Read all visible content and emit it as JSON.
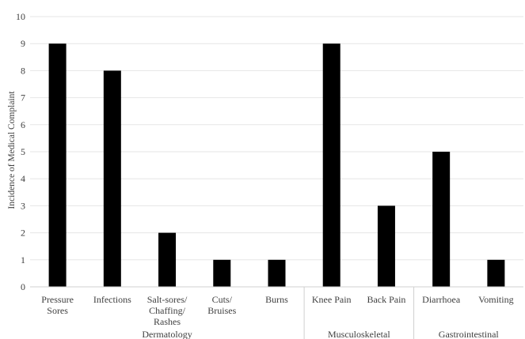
{
  "chart_data": {
    "type": "bar",
    "title": "",
    "xlabel": "",
    "ylabel": "Incidence of Medical Complaint",
    "ylim": [
      0,
      10
    ],
    "yticks": [
      "0",
      "1",
      "2",
      "3",
      "4",
      "5",
      "6",
      "7",
      "8",
      "9",
      "10"
    ],
    "categories": [
      [
        "Pressure",
        "Sores"
      ],
      [
        "Infections"
      ],
      [
        "Salt-sores/",
        "Chaffing/",
        "Rashes"
      ],
      [
        "Cuts/",
        "Bruises"
      ],
      [
        "Burns"
      ],
      [
        "Knee Pain"
      ],
      [
        "Back Pain"
      ],
      [
        "Diarrhoea"
      ],
      [
        "Vomiting"
      ]
    ],
    "values": [
      9,
      8,
      2,
      1,
      1,
      9,
      3,
      5,
      1
    ],
    "groups": [
      {
        "label": "Dermatology",
        "categories": [
          0,
          1,
          2,
          3,
          4
        ]
      },
      {
        "label": "Musculoskeletal",
        "categories": [
          5,
          6
        ]
      },
      {
        "label": "Gastrointestinal",
        "categories": [
          7,
          8
        ]
      }
    ],
    "bar_color": "#000000",
    "grid": true,
    "legend": "none"
  }
}
